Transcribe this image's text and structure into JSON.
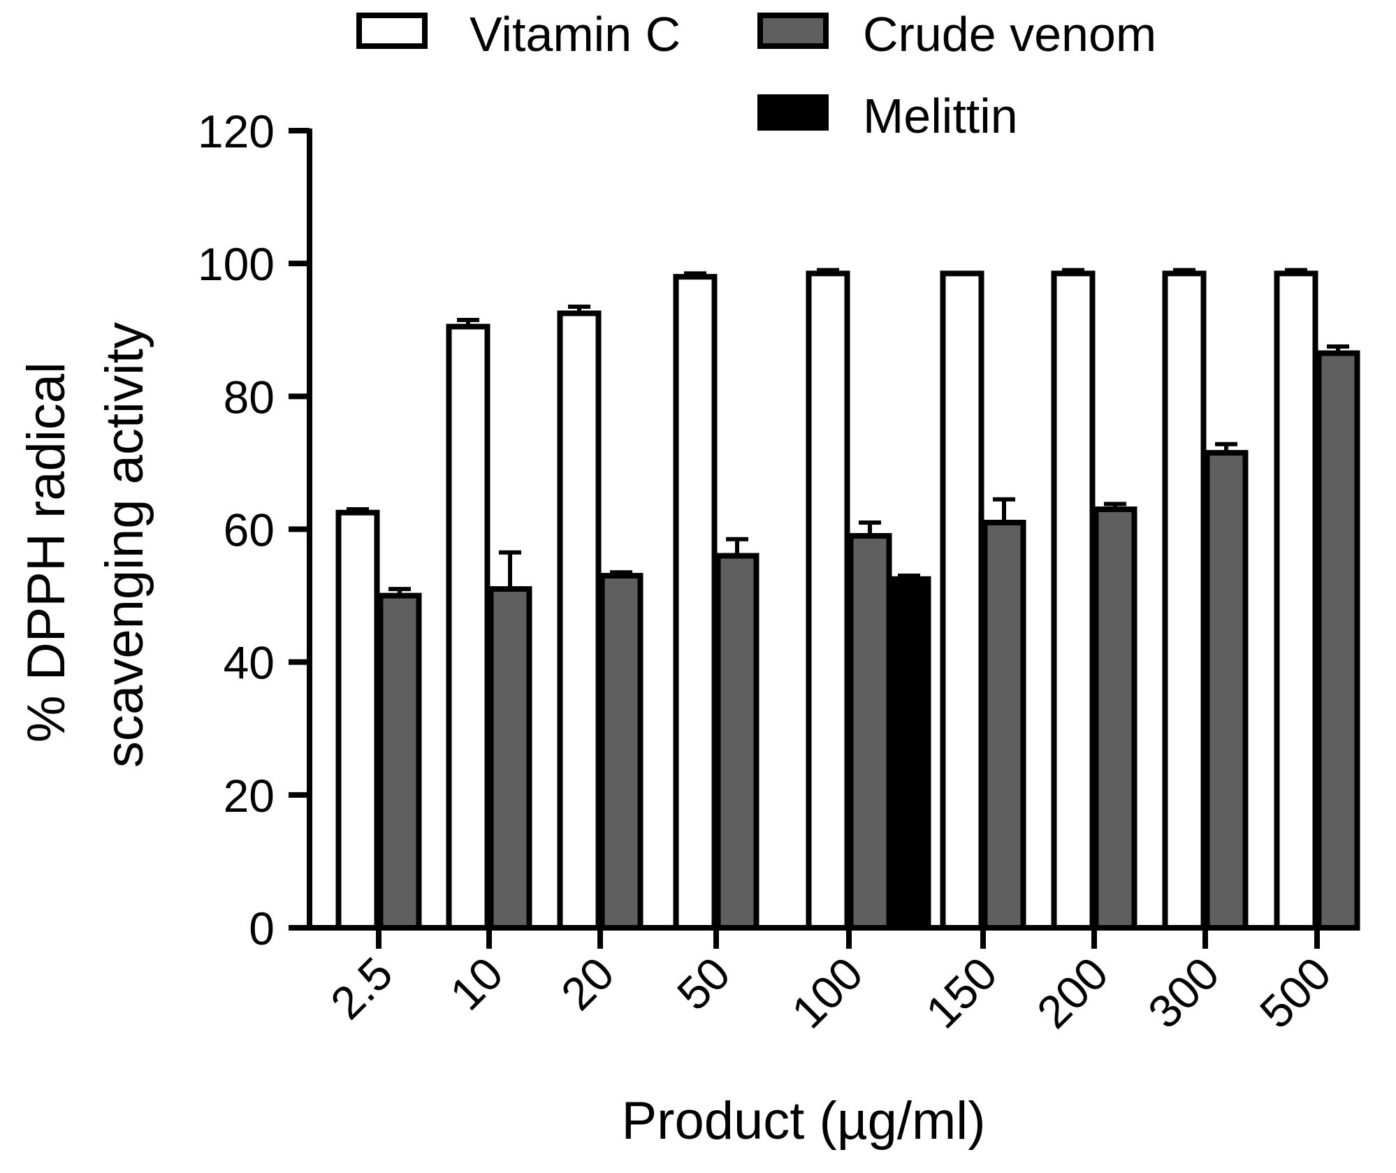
{
  "chart_data": {
    "type": "bar",
    "title": "",
    "xlabel": "Product (µg/ml)",
    "ylabel_lines": [
      "% DPPH radical",
      "scavenging activity"
    ],
    "ylim": [
      0,
      120
    ],
    "yticks": [
      0,
      20,
      40,
      60,
      80,
      100,
      120
    ],
    "categories": [
      "2.5",
      "10",
      "20",
      "50",
      "100",
      "150",
      "200",
      "300",
      "500"
    ],
    "legend_position": "top",
    "series": [
      {
        "name": "Vitamin C",
        "fill": "#ffffff",
        "values": [
          62.5,
          90.5,
          92.5,
          98,
          98.5,
          98.5,
          98.5,
          98.5,
          98.5
        ],
        "errors": [
          0.5,
          1.0,
          1.0,
          0.5,
          0.5,
          0,
          0.5,
          0.5,
          0.5
        ]
      },
      {
        "name": "Crude venom",
        "fill": "#5f5f5f",
        "values": [
          50,
          51,
          53,
          56,
          59,
          61,
          63,
          71.5,
          86.5
        ],
        "errors": [
          1.0,
          5.5,
          0.5,
          2.5,
          2.0,
          3.5,
          0.8,
          1.3,
          1.0
        ]
      },
      {
        "name": "Melittin",
        "fill": "#000000",
        "values": [
          null,
          null,
          null,
          null,
          52.5,
          null,
          null,
          null,
          null
        ],
        "errors": [
          null,
          null,
          null,
          null,
          0.5,
          null,
          null,
          null,
          null
        ]
      }
    ]
  }
}
